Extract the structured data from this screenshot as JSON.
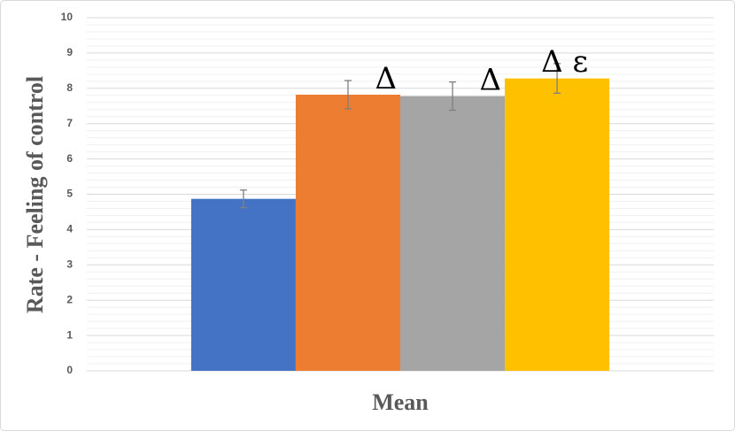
{
  "chart_data": {
    "type": "bar",
    "categories": [
      "Mean"
    ],
    "y_label": "Rate - Feeling of control",
    "series": [
      {
        "color": "#4472c4",
        "values": [
          4.87
        ],
        "errors": [
          0.25
        ]
      },
      {
        "color": "#ed7d31",
        "values": [
          7.82
        ],
        "errors": [
          0.4
        ],
        "annotation": "Δ"
      },
      {
        "color": "#a5a5a5",
        "values": [
          7.78
        ],
        "errors": [
          0.4
        ],
        "annotation": "Δ"
      },
      {
        "color": "#ffc000",
        "values": [
          8.28
        ],
        "errors": [
          0.42
        ],
        "annotation": "Δ ε"
      }
    ],
    "ylim": [
      0,
      10
    ],
    "yticks": [
      0,
      1,
      2,
      3,
      4,
      5,
      6,
      7,
      8,
      9,
      10
    ],
    "grid": true,
    "minor_grid_divisions": 5,
    "error_bar_color": "#7f7f7f"
  }
}
